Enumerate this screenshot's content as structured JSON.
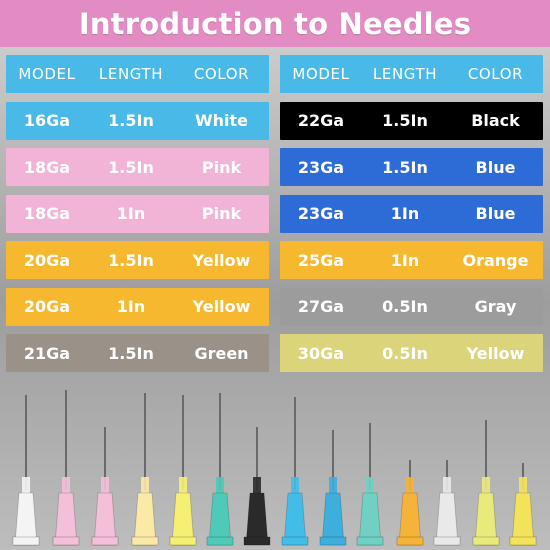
{
  "title": "Introduction to Needles",
  "headers": {
    "model": "MODEL",
    "length": "LENGTH",
    "color": "COLOR"
  },
  "left_rows": [
    {
      "model": "16Ga",
      "length": "1.5In",
      "color": "White",
      "bg": "#49b9e8",
      "fg": "#ffffff"
    },
    {
      "model": "18Ga",
      "length": "1.5In",
      "color": "Pink",
      "bg": "#f2b4d6",
      "fg": "#ffffff"
    },
    {
      "model": "18Ga",
      "length": "1In",
      "color": "Pink",
      "bg": "#f2b4d6",
      "fg": "#ffffff"
    },
    {
      "model": "20Ga",
      "length": "1.5In",
      "color": "Yellow",
      "bg": "#f6b82e",
      "fg": "#ffffff"
    },
    {
      "model": "20Ga",
      "length": "1In",
      "color": "Yellow",
      "bg": "#f6b82e",
      "fg": "#ffffff"
    },
    {
      "model": "21Ga",
      "length": "1.5In",
      "color": "Green",
      "bg": "#9a9189",
      "fg": "#ffffff"
    }
  ],
  "right_rows": [
    {
      "model": "22Ga",
      "length": "1.5In",
      "color": "Black",
      "bg": "#000000",
      "fg": "#ffffff"
    },
    {
      "model": "23Ga",
      "length": "1.5In",
      "color": "Blue",
      "bg": "#2d6bd6",
      "fg": "#ffffff"
    },
    {
      "model": "23Ga",
      "length": "1In",
      "color": "Blue",
      "bg": "#2d6bd6",
      "fg": "#ffffff"
    },
    {
      "model": "25Ga",
      "length": "1In",
      "color": "Orange",
      "bg": "#f6b82e",
      "fg": "#ffffff"
    },
    {
      "model": "27Ga",
      "length": "0.5In",
      "color": "Gray",
      "bg": "#9c9c9c",
      "fg": "#ffffff"
    },
    {
      "model": "30Ga",
      "length": "0.5In",
      "color": "Yellow",
      "bg": "#dcd47a",
      "fg": "#ffffff"
    }
  ],
  "header_bg": "#49b9e8",
  "title_bg": "#e38cc4",
  "needle_hub_colors": [
    "#f4f4f4",
    "#f3bfd9",
    "#f3bfd9",
    "#fbe9a8",
    "#f5ef73",
    "#4fc9b8",
    "#2a2a2a",
    "#42bde8",
    "#3eaedc",
    "#6fd0c3",
    "#f5b339",
    "#e9e9e9",
    "#e9ea7c",
    "#f3e35a"
  ]
}
